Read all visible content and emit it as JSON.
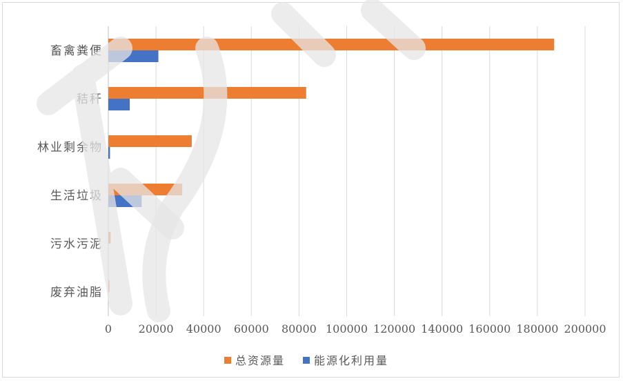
{
  "chart_data": {
    "type": "bar",
    "orientation": "horizontal",
    "categories": [
      "畜禽粪便",
      "秸秆",
      "林业剩余物",
      "生活垃圾",
      "污水污泥",
      "废弃油脂"
    ],
    "series": [
      {
        "name": "总资源量",
        "color": "#ed7d31",
        "values": [
          187000,
          83000,
          35000,
          31000,
          1000,
          500
        ]
      },
      {
        "name": "能源化利用量",
        "color": "#4472c4",
        "values": [
          21000,
          9000,
          700,
          14000,
          0,
          0
        ]
      }
    ],
    "xlim": [
      0,
      200000
    ],
    "xticks": [
      "0",
      "20000",
      "40000",
      "60000",
      "80000",
      "100000",
      "120000",
      "140000",
      "160000",
      "180000",
      "200000"
    ],
    "grid": true,
    "legend_position": "bottom"
  }
}
